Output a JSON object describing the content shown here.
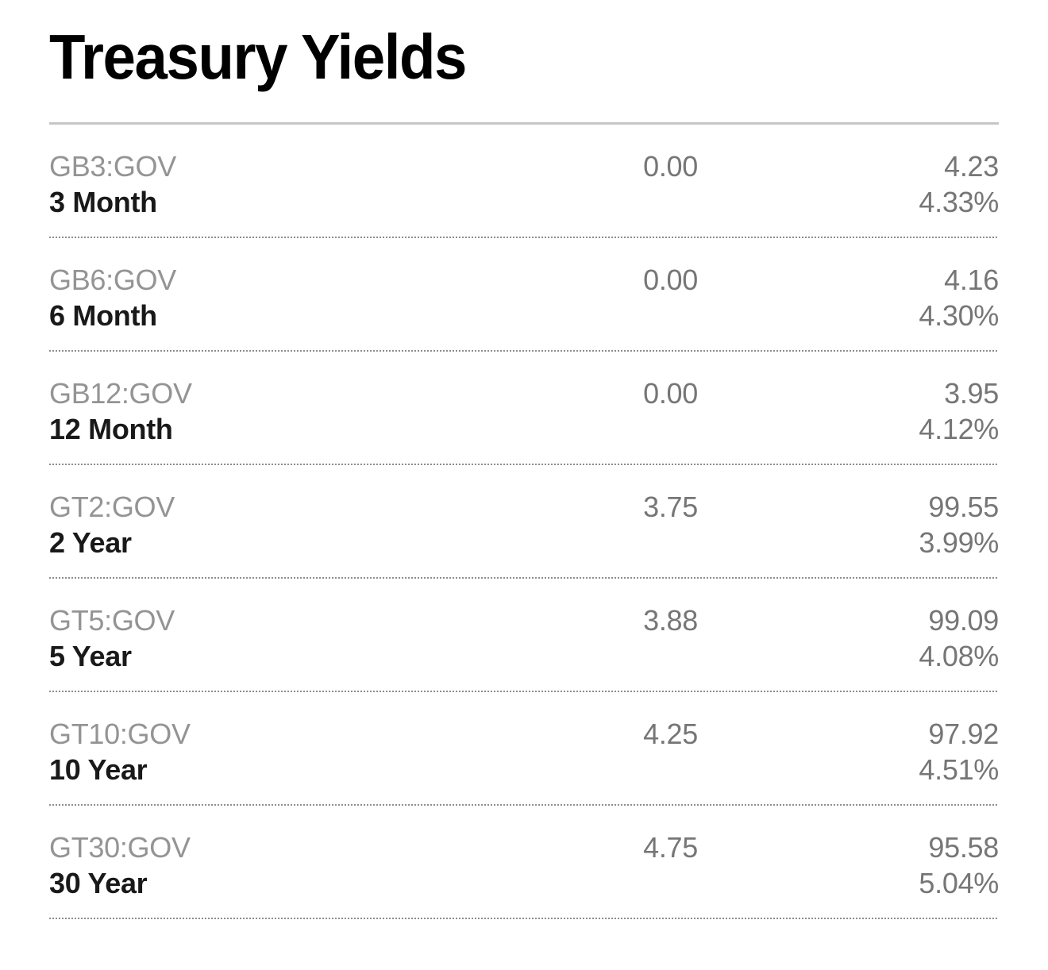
{
  "page": {
    "title": "Treasury Yields"
  },
  "colors": {
    "title": "#000000",
    "ticker_text": "#949494",
    "tenor_text": "#191919",
    "value_text": "#767676",
    "top_rule": "#c6c6c6",
    "row_divider_dots": "#8d8d8d",
    "background": "#ffffff"
  },
  "chart_data": {
    "type": "table",
    "title": "Treasury Yields",
    "layout": {
      "columns_semantic": [
        "ticker_and_tenor",
        "coupon",
        "price_and_yield"
      ],
      "value_alignment": "right",
      "row_divider_style": "dotted",
      "top_rule_style": "solid"
    },
    "rows": [
      {
        "ticker": "GB3:GOV",
        "tenor": "3 Month",
        "coupon": "0.00",
        "price": "4.23",
        "yield": "4.33%"
      },
      {
        "ticker": "GB6:GOV",
        "tenor": "6 Month",
        "coupon": "0.00",
        "price": "4.16",
        "yield": "4.30%"
      },
      {
        "ticker": "GB12:GOV",
        "tenor": "12 Month",
        "coupon": "0.00",
        "price": "3.95",
        "yield": "4.12%"
      },
      {
        "ticker": "GT2:GOV",
        "tenor": "2 Year",
        "coupon": "3.75",
        "price": "99.55",
        "yield": "3.99%"
      },
      {
        "ticker": "GT5:GOV",
        "tenor": "5 Year",
        "coupon": "3.88",
        "price": "99.09",
        "yield": "4.08%"
      },
      {
        "ticker": "GT10:GOV",
        "tenor": "10 Year",
        "coupon": "4.25",
        "price": "97.92",
        "yield": "4.51%"
      },
      {
        "ticker": "GT30:GOV",
        "tenor": "30 Year",
        "coupon": "4.75",
        "price": "95.58",
        "yield": "5.04%"
      }
    ]
  }
}
